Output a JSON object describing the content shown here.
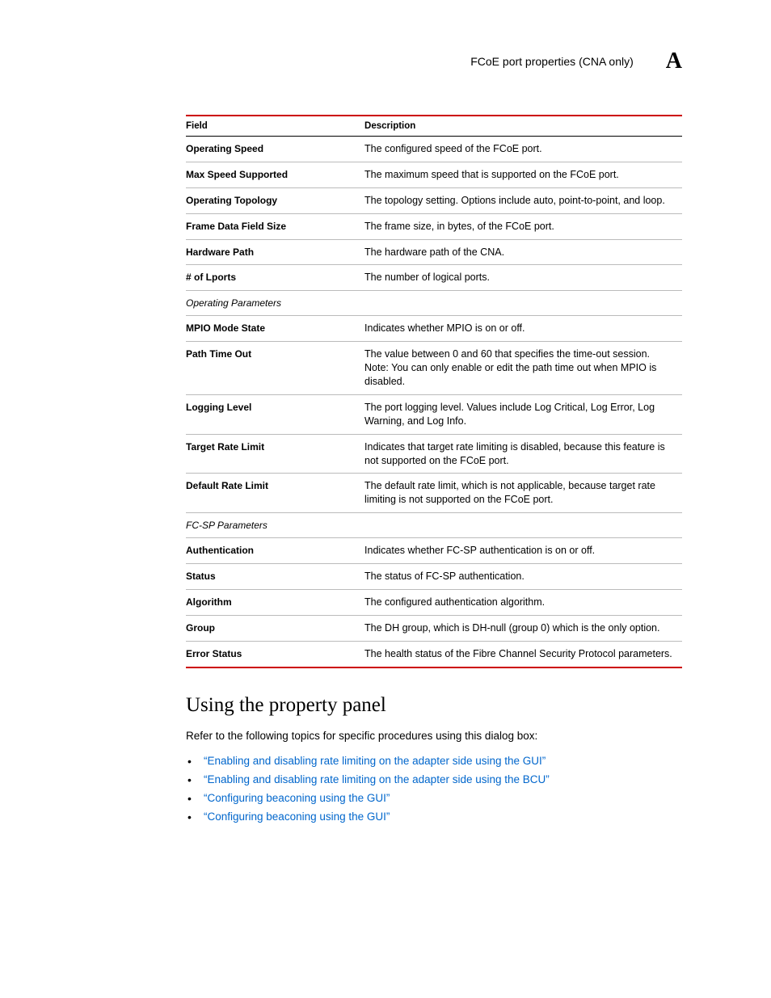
{
  "header": {
    "title": "FCoE port properties (CNA only)",
    "chapter": "A"
  },
  "table": {
    "col1": "Field",
    "col2": "Description",
    "rows": [
      {
        "field": "Operating Speed",
        "desc": "The configured speed of the FCoE port."
      },
      {
        "field": "Max Speed Supported",
        "desc": "The maximum speed that is supported on the FCoE port."
      },
      {
        "field": "Operating Topology",
        "desc": "The topology setting. Options include auto, point-to-point, and loop."
      },
      {
        "field": "Frame Data Field Size",
        "desc": "The frame size, in bytes, of the FCoE port."
      },
      {
        "field": "Hardware Path",
        "desc": "The hardware path of the CNA."
      },
      {
        "field": "# of Lports",
        "desc": "The number of logical ports."
      },
      {
        "field": "Operating Parameters",
        "desc": "",
        "section": true
      },
      {
        "field": "MPIO Mode State",
        "desc": "Indicates whether MPIO is on or off."
      },
      {
        "field": "Path Time Out",
        "desc": "The value between 0 and 60 that specifies the time-out session. Note: You can only enable or edit the path time out when MPIO is disabled."
      },
      {
        "field": "Logging Level",
        "desc": "The port logging level. Values include Log Critical, Log Error, Log Warning, and Log Info."
      },
      {
        "field": "Target Rate Limit",
        "desc": "Indicates that target rate limiting is disabled, because this feature is not supported on the FCoE port."
      },
      {
        "field": "Default Rate Limit",
        "desc": "The default rate limit, which is not applicable, because target rate limiting is not supported on the FCoE port."
      },
      {
        "field": "FC-SP Parameters",
        "desc": "",
        "section": true
      },
      {
        "field": "Authentication",
        "desc": "Indicates whether FC-SP authentication is on or off."
      },
      {
        "field": "Status",
        "desc": "The status of FC-SP authentication."
      },
      {
        "field": "Algorithm",
        "desc": "The configured authentication algorithm."
      },
      {
        "field": "Group",
        "desc": "The DH group, which is DH-null (group 0) which is the only option."
      },
      {
        "field": "Error Status",
        "desc": "The health status of the Fibre Channel Security Protocol parameters."
      }
    ]
  },
  "section_heading": "Using the property panel",
  "intro_text": "Refer to the following topics for specific procedures using this dialog box:",
  "links": [
    "“Enabling and disabling rate limiting on the adapter side using the GUI”",
    "“Enabling and disabling rate limiting on the adapter side using the BCU”",
    "“Configuring beaconing using the GUI”",
    "“Configuring beaconing using the GUI”"
  ]
}
